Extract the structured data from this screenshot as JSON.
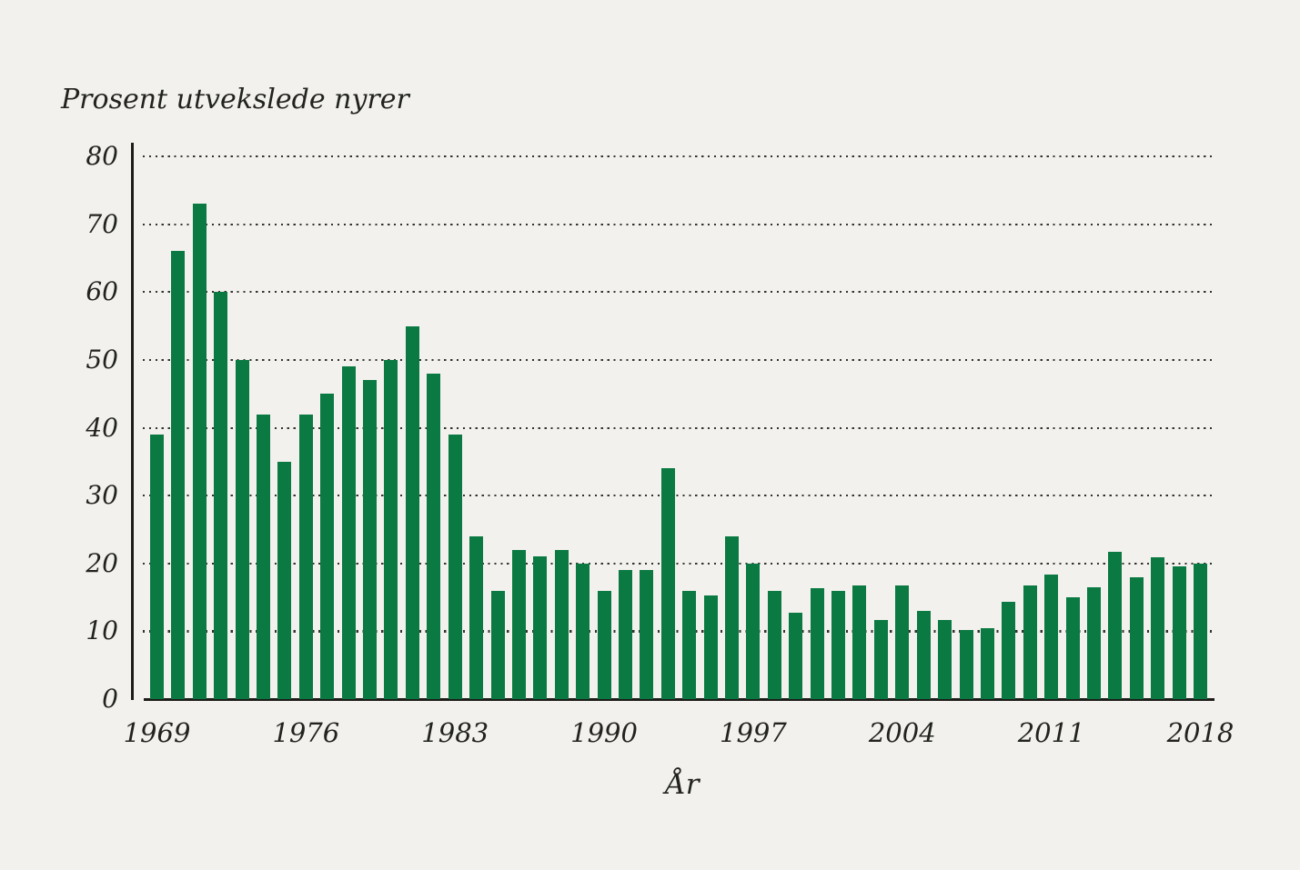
{
  "colors": {
    "background": "#f2f1ee",
    "bar": "#0b7a42",
    "axis": "#1c1c19",
    "grid_dot": "#33332e",
    "text": "#22221e"
  },
  "chart_data": {
    "type": "bar",
    "title": "Prosent utvekslede nyrer",
    "xlabel": "År",
    "ylabel": "Prosent utvekslede nyrer",
    "ylim": [
      0,
      80
    ],
    "yticks": [
      0,
      10,
      20,
      30,
      40,
      50,
      60,
      70,
      80
    ],
    "xtick_years": [
      1969,
      1976,
      1983,
      1990,
      1997,
      2004,
      2011,
      2018
    ],
    "grid": "horizontal-dotted",
    "legend": "none",
    "bar_color": "#0b7a42",
    "categories": [
      1969,
      1970,
      1971,
      1972,
      1973,
      1974,
      1975,
      1976,
      1977,
      1978,
      1979,
      1980,
      1981,
      1982,
      1983,
      1984,
      1985,
      1986,
      1987,
      1988,
      1989,
      1990,
      1991,
      1992,
      1993,
      1994,
      1995,
      1996,
      1997,
      1998,
      1999,
      2000,
      2001,
      2002,
      2003,
      2004,
      2005,
      2006,
      2007,
      2008,
      2009,
      2010,
      2011,
      2012,
      2013,
      2014,
      2015,
      2016,
      2017,
      2018
    ],
    "values": [
      39,
      66,
      73,
      60,
      50,
      42,
      35,
      42,
      45,
      49,
      47,
      50,
      55,
      48,
      39,
      24,
      16,
      22,
      21,
      22,
      20,
      16,
      19,
      19,
      34,
      16,
      15.3,
      24,
      20,
      16,
      12.7,
      16.4,
      16,
      16.7,
      11.7,
      16.7,
      13,
      11.7,
      10.2,
      10.5,
      14.3,
      16.7,
      18.3,
      15,
      16.5,
      21.7,
      17.9,
      20.9,
      19.5,
      20
    ]
  }
}
